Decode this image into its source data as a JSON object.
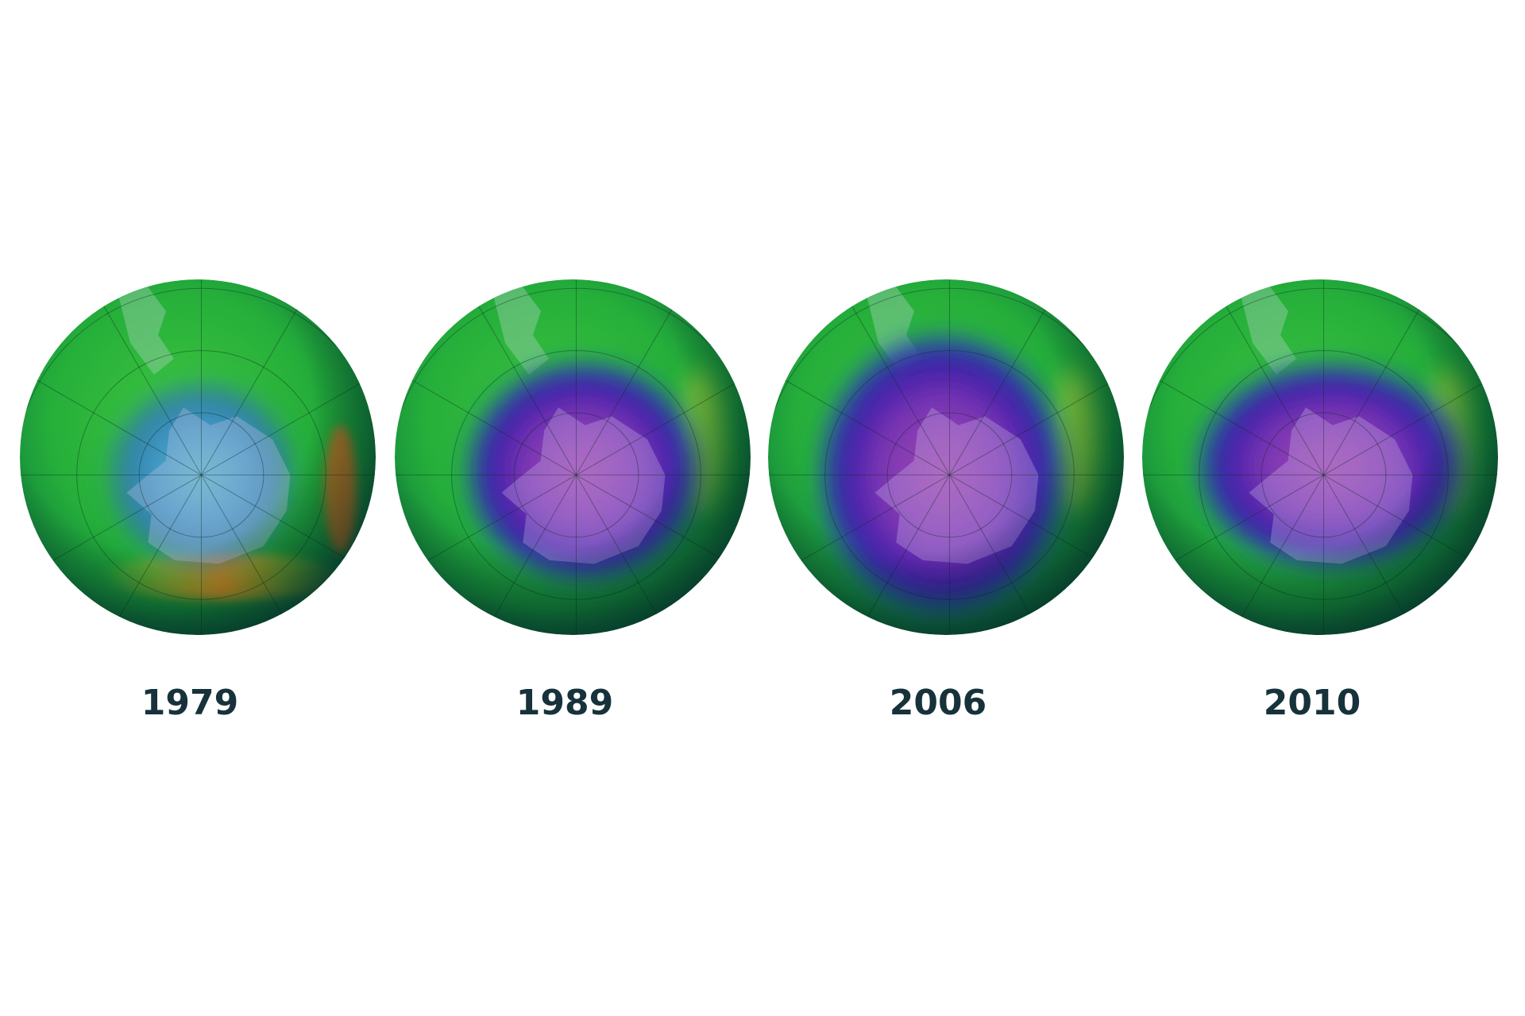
{
  "panels": [
    {
      "label": "1979"
    },
    {
      "label": "1989"
    },
    {
      "label": "2006"
    },
    {
      "label": "2010"
    }
  ]
}
